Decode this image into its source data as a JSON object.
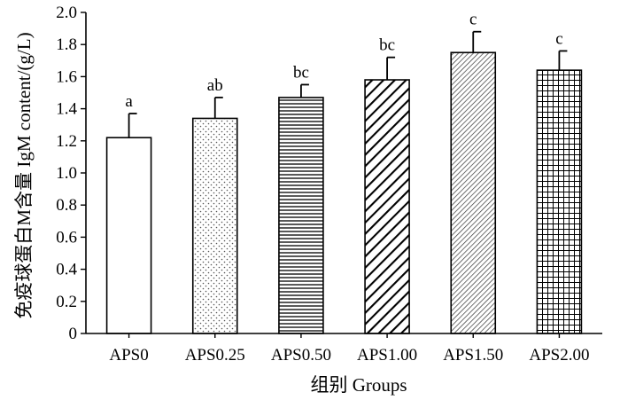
{
  "chart_data": {
    "type": "bar",
    "xlabel": "组别  Groups",
    "ylabel": "免疫球蛋白M含量  IgM content/(g/L)",
    "ylim": [
      0,
      2.0
    ],
    "yticks": [
      "0",
      "0.2",
      "0.4",
      "0.6",
      "0.8",
      "1.0",
      "1.2",
      "1.4",
      "1.6",
      "1.8",
      "2.0"
    ],
    "grid": false,
    "categories": [
      "APS0",
      "APS0.25",
      "APS0.50",
      "APS1.00",
      "APS1.50",
      "APS2.00"
    ],
    "values": [
      1.22,
      1.34,
      1.47,
      1.58,
      1.75,
      1.64
    ],
    "errors": [
      0.15,
      0.13,
      0.08,
      0.14,
      0.13,
      0.12
    ],
    "significance": [
      "a",
      "ab",
      "bc",
      "bc",
      "c",
      "c"
    ],
    "patterns": [
      "none",
      "dots",
      "horizontal-lines",
      "diagonal-thick",
      "diagonal-fine",
      "grid"
    ],
    "colors": {
      "axis": "#000000",
      "bar_fill": "#ffffff",
      "pattern": "#000000"
    }
  }
}
